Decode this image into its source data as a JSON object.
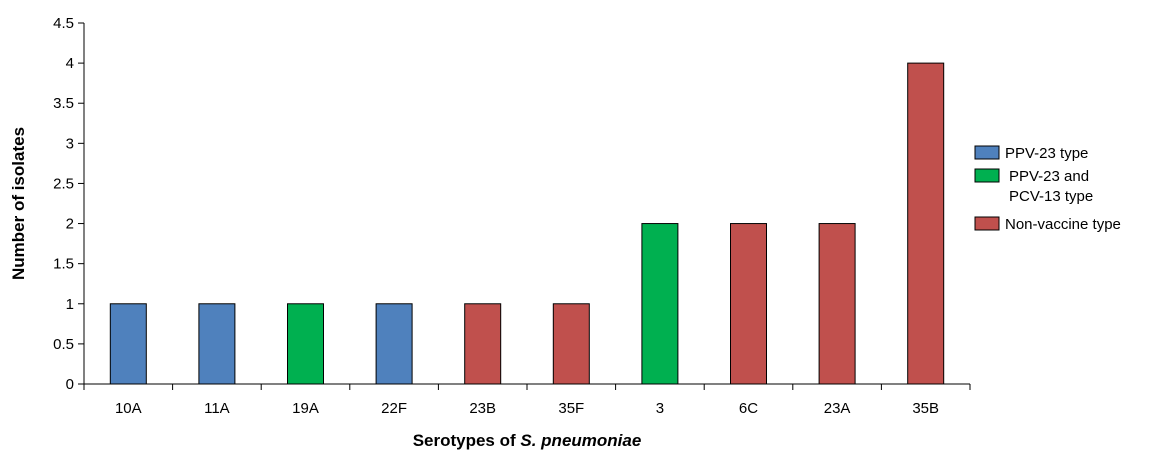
{
  "chart_data": {
    "type": "bar",
    "categories": [
      "10A",
      "11A",
      "19A",
      "22F",
      "23B",
      "35F",
      "3",
      "6C",
      "23A",
      "35B"
    ],
    "values": [
      1,
      1,
      1,
      1,
      1,
      1,
      2,
      2,
      2,
      4
    ],
    "groups": [
      "PPV-23 type",
      "PPV-23 type",
      "PPV-23 and PCV-13 type",
      "PPV-23 type",
      "Non-vaccine type",
      "Non-vaccine type",
      "PPV-23 and PCV-13 type",
      "Non-vaccine type",
      "Non-vaccine type",
      "Non-vaccine type"
    ],
    "xlabel_prefix": "Serotypes of ",
    "xlabel_italic": "S. pneumoniae",
    "ylabel": "Number of isolates",
    "ylim": [
      0,
      4.5
    ],
    "yticks": [
      "0",
      "0.5",
      "1",
      "1.5",
      "2",
      "2.5",
      "3",
      "3.5",
      "4",
      "4.5"
    ],
    "grid": false,
    "legend_position": "right",
    "legend": [
      {
        "key": "PPV-23 type",
        "lines": [
          "PPV-23 type"
        ],
        "color": "#4f81bd"
      },
      {
        "key": "PPV-23 and PCV-13 type",
        "lines": [
          "PPV-23 and",
          "PCV-13 type"
        ],
        "color": "#00b050"
      },
      {
        "key": "Non-vaccine type",
        "lines": [
          "Non-vaccine type"
        ],
        "color": "#c0504d"
      }
    ]
  }
}
